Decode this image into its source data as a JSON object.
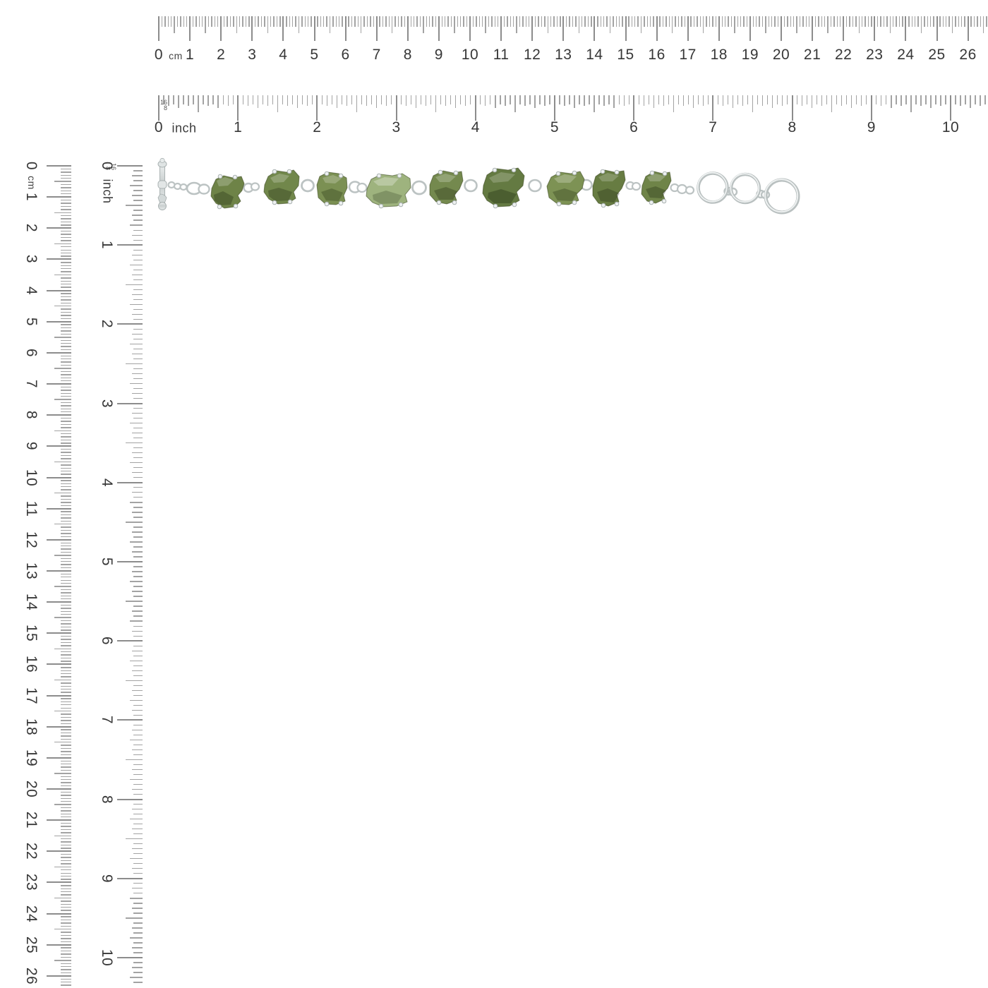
{
  "rulers": {
    "horizontal_cm": {
      "zero_label": "0",
      "unit_label": "cm",
      "numbers": [
        "1",
        "2",
        "3",
        "4",
        "5",
        "6",
        "7",
        "8",
        "9",
        "10",
        "11",
        "12",
        "13",
        "14",
        "15",
        "16",
        "17",
        "18",
        "19",
        "20",
        "21",
        "22",
        "23",
        "24",
        "25",
        "26"
      ]
    },
    "horizontal_inch": {
      "zero_label": "0",
      "unit_label": "inch",
      "numbers": [
        "1",
        "2",
        "3",
        "4",
        "5",
        "6",
        "7",
        "8",
        "9",
        "10"
      ],
      "fraction_top": "16",
      "fraction_bottom": "8"
    },
    "vertical_cm": {
      "zero_label": "0",
      "unit_label": "cm",
      "numbers": [
        "1",
        "2",
        "3",
        "4",
        "5",
        "6",
        "7",
        "8",
        "9",
        "10",
        "11",
        "12",
        "13",
        "14",
        "15",
        "16",
        "17",
        "18",
        "19",
        "20",
        "21",
        "22",
        "23",
        "24",
        "25",
        "26"
      ]
    },
    "vertical_inch": {
      "zero_label": "0",
      "unit_label": "inch",
      "numbers": [
        "1",
        "2",
        "3",
        "4",
        "5",
        "6",
        "7",
        "8",
        "9",
        "10"
      ],
      "fraction_top": "16",
      "fraction_bottom": "8"
    }
  },
  "bracelet": {
    "stone_count": 9,
    "silver_color": "#c2c8c8",
    "stone_colors": [
      "#6e8347",
      "#71874b",
      "#7b9053",
      "#9eb37e",
      "#74894e",
      "#647a42",
      "#7d9254",
      "#677c42",
      "#6f8448"
    ]
  }
}
